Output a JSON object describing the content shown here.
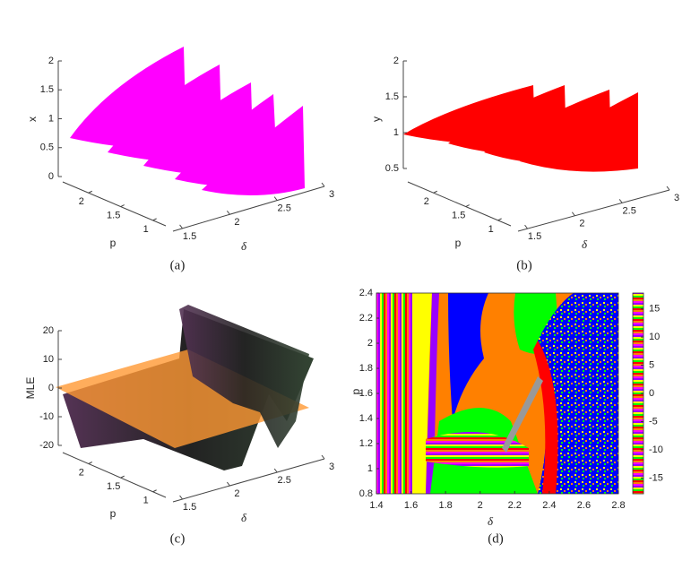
{
  "chart_data": [
    {
      "type": "scatter3d",
      "caption": "(a)",
      "zlabel": "x",
      "xlabel": "δ",
      "ylabel": "p",
      "color": "#ff00ff",
      "xlim": [
        1.4,
        3
      ],
      "ylim": [
        0.8,
        2.4
      ],
      "zlim": [
        0,
        2
      ],
      "xticks": [
        1.5,
        2,
        2.5,
        3
      ],
      "yticks": [
        1,
        1.5,
        2
      ],
      "zticks": [
        0,
        0.5,
        1,
        1.5,
        2
      ]
    },
    {
      "type": "scatter3d",
      "caption": "(b)",
      "zlabel": "y",
      "xlabel": "δ",
      "ylabel": "p",
      "color": "#ff0000",
      "xlim": [
        1.4,
        3
      ],
      "ylim": [
        0.8,
        2.4
      ],
      "zlim": [
        0.5,
        2
      ],
      "xticks": [
        1.5,
        2,
        2.5,
        3
      ],
      "yticks": [
        1,
        1.5,
        2
      ],
      "zticks": [
        0.5,
        1,
        1.5,
        2
      ]
    },
    {
      "type": "surface3d",
      "caption": "(c)",
      "zlabel": "MLE",
      "xlabel": "δ",
      "ylabel": "p",
      "color": "#ff9933",
      "xlim": [
        1.4,
        3
      ],
      "ylim": [
        0.8,
        2.4
      ],
      "zlim": [
        -20,
        20
      ],
      "xticks": [
        1.5,
        2,
        2.5,
        3
      ],
      "yticks": [
        1,
        1.5,
        2
      ],
      "zticks": [
        -20,
        -10,
        0,
        10,
        20
      ]
    },
    {
      "type": "heatmap",
      "caption": "(d)",
      "xlabel": "δ",
      "ylabel": "p",
      "xlim": [
        1.4,
        2.8
      ],
      "ylim": [
        0.8,
        2.4
      ],
      "xticks": [
        1.4,
        1.6,
        1.8,
        2,
        2.2,
        2.4,
        2.6,
        2.8
      ],
      "yticks": [
        0.8,
        1,
        1.2,
        1.4,
        1.6,
        1.8,
        2,
        2.2,
        2.4
      ],
      "clim": [
        -17.8,
        17.8
      ],
      "cticks": [
        -15,
        -10,
        -5,
        0,
        5,
        10,
        15
      ]
    }
  ]
}
